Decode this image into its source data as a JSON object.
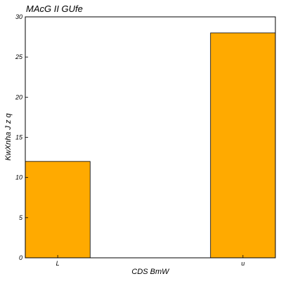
{
  "chart_data": {
    "type": "bar",
    "title": "MAcG II GUfe",
    "xlabel": "CDS BmW",
    "ylabel": "KwXnha J  z q",
    "categories": [
      "L",
      "u"
    ],
    "values": [
      12,
      28
    ],
    "ylim": [
      0,
      30
    ],
    "yticks": [
      0,
      5,
      10,
      15,
      20,
      25,
      30
    ],
    "grid": false,
    "bar_color": "#ffaa00",
    "bar_edge_color": "#000000"
  }
}
